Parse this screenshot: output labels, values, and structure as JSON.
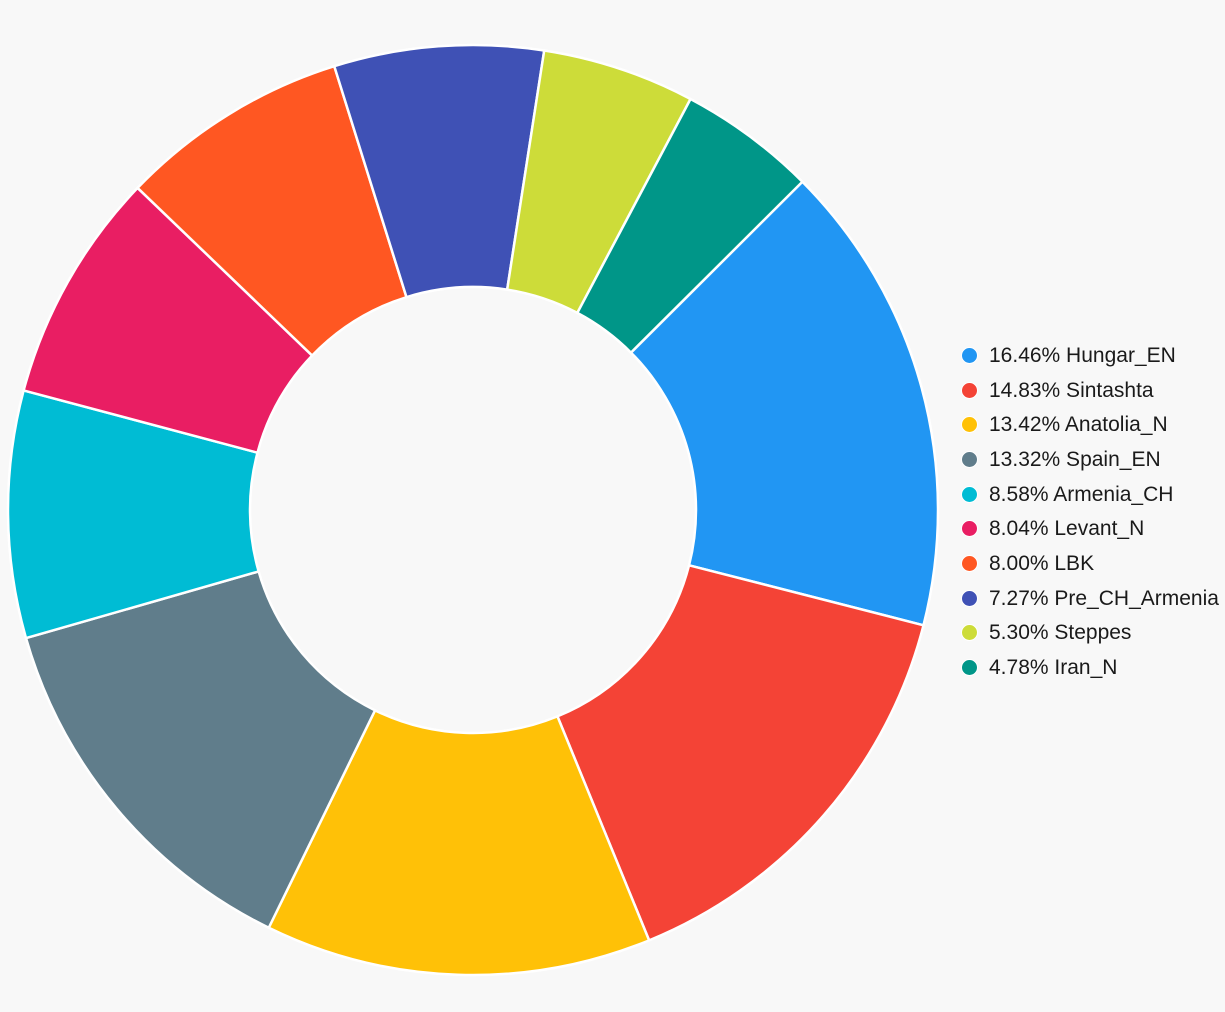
{
  "page": {
    "background": "#f8f8f8"
  },
  "chart_data": {
    "type": "pie",
    "subtype": "donut",
    "title": "",
    "legend_position": "right",
    "direction": "clockwise",
    "start_angle_deg": 45.1,
    "center": {
      "x": 473,
      "y": 510
    },
    "outer_radius": 465,
    "inner_radius": 223,
    "separator_color": "#ffffff",
    "text_color": "#1a1a1a",
    "series": [
      {
        "label": "Hungar_EN",
        "value": 16.46,
        "color": "#2196f3",
        "display": "16.46% Hungar_EN"
      },
      {
        "label": "Sintashta",
        "value": 14.83,
        "color": "#f44336",
        "display": "14.83% Sintashta"
      },
      {
        "label": "Anatolia_N",
        "value": 13.42,
        "color": "#ffc107",
        "display": "13.42% Anatolia_N"
      },
      {
        "label": "Spain_EN",
        "value": 13.32,
        "color": "#607d8b",
        "display": "13.32% Spain_EN"
      },
      {
        "label": "Armenia_CH",
        "value": 8.58,
        "color": "#00bcd4",
        "display": "8.58% Armenia_CH"
      },
      {
        "label": "Levant_N",
        "value": 8.04,
        "color": "#e91e63",
        "display": "8.04% Levant_N"
      },
      {
        "label": "LBK",
        "value": 8.0,
        "color": "#ff5722",
        "display": "8.00% LBK"
      },
      {
        "label": "Pre_CH_Armenia",
        "value": 7.27,
        "color": "#3f51b5",
        "display": "7.27% Pre_CH_Armenia"
      },
      {
        "label": "Steppes",
        "value": 5.3,
        "color": "#cddc39",
        "display": "5.30% Steppes"
      },
      {
        "label": "Iran_N",
        "value": 4.78,
        "color": "#009688",
        "display": "4.78% Iran_N"
      }
    ]
  }
}
